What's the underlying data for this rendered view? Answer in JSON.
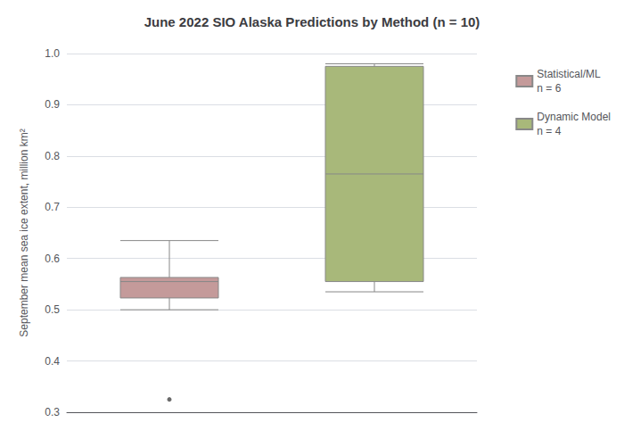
{
  "chart_data": {
    "type": "boxplot",
    "title": "June 2022 SIO Alaska Predictions by Method (n = 10)",
    "ylabel": "September mean sea ice extent, million km²",
    "series": [
      {
        "name": "Statistical/ML\nn = 6",
        "color": "#c49a9a",
        "whisker_lo": 0.5,
        "q1": 0.523,
        "median": 0.555,
        "q3": 0.563,
        "whisker_hi": 0.635,
        "fliers": [
          0.325
        ]
      },
      {
        "name": "Dynamic Model\nn = 4",
        "color": "#a8b87a",
        "whisker_lo": 0.535,
        "q1": 0.555,
        "median": 0.765,
        "q3": 0.975,
        "whisker_hi": 0.98
      }
    ],
    "ylim": [
      0.3,
      1.0
    ],
    "yticks": [
      0.3,
      0.4,
      0.5,
      0.6,
      0.7,
      0.8,
      0.9,
      {
        "value": 1.0,
        "label": "1.0"
      }
    ],
    "grid": true,
    "legend": "upper right",
    "tick_labels": "y"
  }
}
